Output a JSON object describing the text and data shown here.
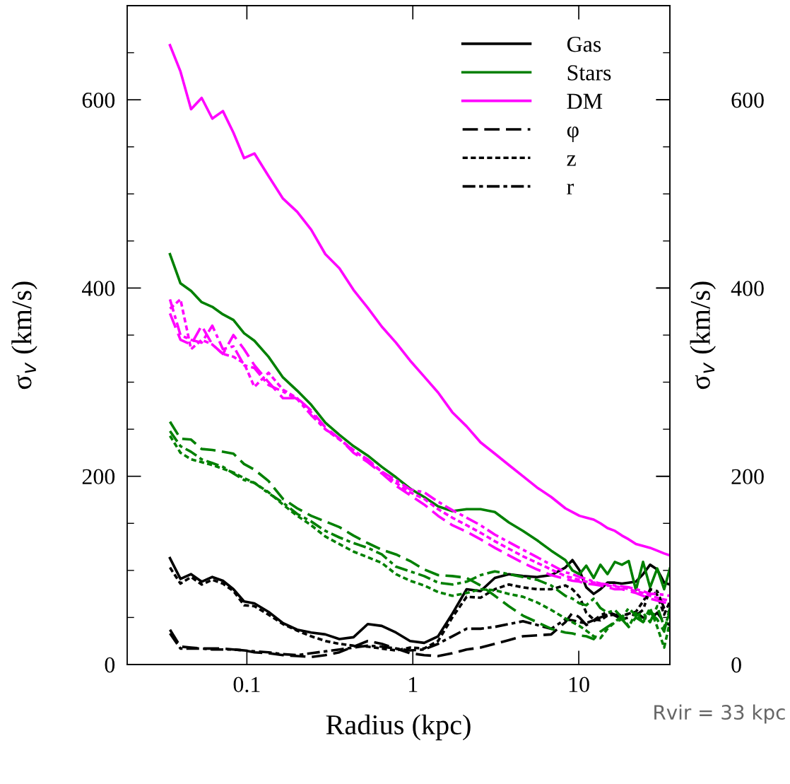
{
  "chart_data": {
    "type": "line",
    "xlabel": "Radius (kpc)",
    "ylabel": "σ$_{v}$ (km/s)",
    "y2label": "σ$_{v}$ (km/s)",
    "annotations": [
      "Rvir = 33 kpc"
    ],
    "log": "x",
    "xlim": [
      0.019,
      35.4
    ],
    "xticks": [
      0.1,
      1,
      10
    ],
    "ylim": [
      0,
      700
    ],
    "yticks": [
      0,
      200,
      400,
      600
    ],
    "y2lim": [
      0,
      700
    ],
    "y2ticks": [
      0,
      200,
      400,
      600
    ],
    "grid": false,
    "legend": "top right",
    "marker": "none",
    "x": [
      0.0344,
      0.0398,
      0.0461,
      0.0534,
      0.0619,
      0.0717,
      0.083,
      0.0962,
      0.111,
      0.135,
      0.165,
      0.201,
      0.244,
      0.297,
      0.361,
      0.439,
      0.535,
      0.65,
      0.791,
      0.962,
      1.17,
      1.42,
      1.73,
      2.11,
      2.56,
      3.12,
      3.79,
      4.61,
      5.61,
      6.82,
      8.3,
      9.16,
      10.1,
      11.1,
      12.3,
      13.5,
      14.9,
      16.5,
      18.2,
      20,
      22.1,
      24.4,
      26.9,
      29.7,
      32.7,
      35.4
    ],
    "series": [
      {
        "name": "Gas",
        "color": "#000000",
        "line_style": "solid",
        "values": [
          113,
          91,
          96,
          88,
          93,
          89,
          80,
          67,
          65,
          56,
          44,
          37,
          34,
          32,
          27,
          29,
          43,
          41,
          34,
          25,
          23,
          30,
          54,
          80,
          78,
          92,
          96,
          94,
          93,
          95,
          103,
          111,
          100,
          82,
          75,
          80,
          87,
          87,
          86,
          87,
          88,
          96,
          106,
          101,
          87,
          85
        ]
      },
      {
        "name": "Stars",
        "color": "#008000",
        "line_style": "solid",
        "values": [
          436,
          405,
          397,
          385,
          380,
          372,
          366,
          352,
          344,
          327,
          305,
          291,
          276,
          257,
          244,
          232,
          222,
          210,
          199,
          187,
          178,
          168,
          163,
          165,
          165,
          162,
          151,
          142,
          132,
          121,
          111,
          100,
          96,
          105,
          92,
          106,
          96,
          109,
          106,
          110,
          79,
          109,
          82,
          102,
          80,
          102
        ]
      },
      {
        "name": "DM",
        "color": "#ff00ff",
        "line_style": "solid",
        "values": [
          658,
          630,
          590,
          602,
          580,
          588,
          565,
          538,
          543,
          519,
          495,
          481,
          462,
          436,
          421,
          398,
          379,
          359,
          342,
          323,
          306,
          289,
          268,
          253,
          236,
          224,
          212,
          200,
          188,
          178,
          166,
          162,
          158,
          156,
          154,
          150,
          145,
          142,
          137,
          133,
          128,
          126,
          124,
          121,
          118,
          116
        ]
      },
      {
        "name": "φ",
        "color": "#000000",
        "line_style": "dashed",
        "values": [
          37,
          19,
          18,
          17,
          17,
          17,
          16,
          15,
          13,
          12,
          10,
          9,
          8,
          10,
          13,
          19,
          25,
          22,
          17,
          12,
          10,
          9,
          12,
          16,
          18,
          22,
          26,
          30,
          31,
          32,
          45,
          55,
          50,
          42,
          46,
          50,
          53,
          52,
          48,
          50,
          55,
          50,
          48,
          55,
          45,
          42
        ]
      },
      {
        "name": "z",
        "color": "#000000",
        "line_style": "dotted",
        "values": [
          103,
          86,
          93,
          85,
          90,
          86,
          78,
          63,
          62,
          53,
          43,
          36,
          30,
          25,
          22,
          20,
          19,
          17,
          15,
          18,
          17,
          25,
          50,
          72,
          71,
          80,
          85,
          82,
          80,
          80,
          84,
          80,
          72,
          55,
          48,
          47,
          52,
          53,
          51,
          54,
          56,
          67,
          79,
          74,
          53,
          67
        ]
      },
      {
        "name": "r",
        "color": "#000000",
        "line_style": "dashdot",
        "values": [
          33,
          17,
          17,
          17,
          16,
          16,
          16,
          15,
          14,
          13,
          11,
          10,
          12,
          14,
          16,
          18,
          20,
          19,
          17,
          15,
          16,
          22,
          30,
          38,
          38,
          40,
          43,
          46,
          42,
          38,
          48,
          47,
          45,
          44,
          47,
          52,
          56,
          53,
          52,
          54,
          52,
          58,
          80,
          78,
          60,
          55
        ]
      },
      {
        "color": "#008000",
        "line_style": "dashed",
        "values": [
          258,
          240,
          239,
          229,
          228,
          226,
          224,
          213,
          207,
          195,
          176,
          166,
          158,
          152,
          146,
          137,
          129,
          122,
          117,
          110,
          101,
          95,
          94,
          92,
          84,
          73,
          62,
          52,
          45,
          38,
          34,
          33,
          31,
          30,
          27,
          35,
          40,
          45,
          48,
          40,
          50,
          45,
          55,
          48,
          35,
          60
        ]
      },
      {
        "color": "#008000",
        "line_style": "dotted",
        "values": [
          243,
          225,
          218,
          215,
          212,
          208,
          204,
          198,
          193,
          183,
          170,
          158,
          148,
          136,
          128,
          120,
          114,
          108,
          96,
          89,
          84,
          77,
          73,
          76,
          80,
          79,
          75,
          72,
          66,
          58,
          49,
          45,
          41,
          36,
          30,
          28,
          38,
          45,
          52,
          40,
          55,
          45,
          60,
          40,
          18,
          45
        ]
      },
      {
        "color": "#008000",
        "line_style": "dashdot",
        "values": [
          248,
          232,
          226,
          218,
          214,
          210,
          203,
          196,
          193,
          182,
          172,
          160,
          152,
          142,
          135,
          129,
          124,
          117,
          104,
          99,
          94,
          87,
          85,
          88,
          95,
          99,
          96,
          93,
          90,
          84,
          73,
          70,
          65,
          63,
          70,
          60,
          55,
          58,
          50,
          60,
          52,
          55,
          45,
          62,
          40,
          55
        ]
      },
      {
        "color": "#ff00ff",
        "line_style": "dashed",
        "values": [
          373,
          345,
          340,
          360,
          340,
          330,
          350,
          335,
          318,
          300,
          283,
          283,
          270,
          252,
          240,
          225,
          215,
          203,
          190,
          180,
          170,
          158,
          148,
          141,
          133,
          124,
          116,
          108,
          101,
          95,
          91,
          89,
          88,
          86,
          85,
          84,
          82,
          80,
          80,
          78,
          76,
          73,
          70,
          68,
          66,
          65
        ]
      },
      {
        "color": "#ff00ff",
        "line_style": "dotted",
        "values": [
          378,
          388,
          335,
          345,
          340,
          330,
          327,
          320,
          295,
          310,
          292,
          283,
          268,
          250,
          239,
          228,
          216,
          205,
          193,
          183,
          176,
          165,
          156,
          148,
          140,
          131,
          123,
          115,
          108,
          101,
          94,
          92,
          90,
          88,
          87,
          86,
          84,
          83,
          82,
          80,
          78,
          76,
          73,
          71,
          69,
          68
        ]
      },
      {
        "color": "#ff00ff",
        "line_style": "dashdot",
        "values": [
          388,
          350,
          345,
          342,
          360,
          335,
          338,
          318,
          315,
          297,
          290,
          282,
          265,
          250,
          240,
          227,
          218,
          205,
          196,
          186,
          183,
          173,
          164,
          156,
          148,
          138,
          130,
          122,
          114,
          106,
          98,
          96,
          93,
          91,
          88,
          86,
          85,
          84,
          83,
          82,
          80,
          78,
          75,
          75,
          74,
          73
        ]
      }
    ]
  }
}
